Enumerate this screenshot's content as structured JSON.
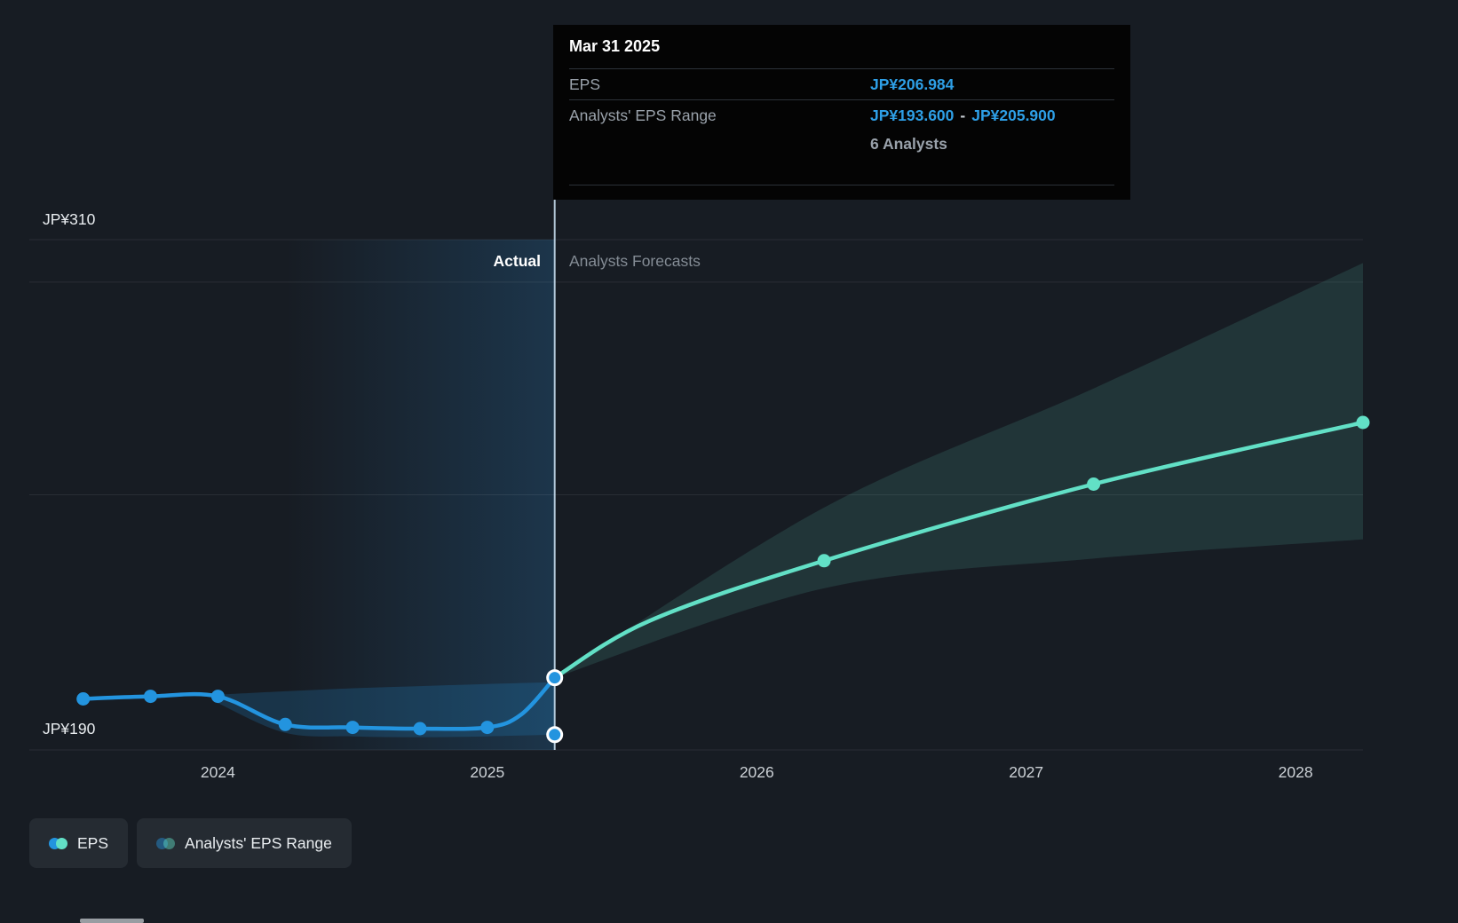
{
  "tooltip": {
    "title": "Mar 31 2025",
    "eps_label": "EPS",
    "eps_value": "JP¥206.984",
    "range_label": "Analysts' EPS Range",
    "range_low": "JP¥193.600",
    "range_separator": "-",
    "range_high": "JP¥205.900",
    "analysts_count": "6 Analysts"
  },
  "annotations": {
    "actual_label": "Actual",
    "forecast_label": "Analysts Forecasts"
  },
  "axis": {
    "y_labels": [
      "JP¥310",
      "JP¥190"
    ],
    "x_labels": [
      "2024",
      "2025",
      "2026",
      "2027",
      "2028"
    ]
  },
  "legend": {
    "eps_label": "EPS",
    "range_label": "Analysts' EPS Range"
  },
  "colors": {
    "eps_line": "#2394df",
    "forecast_line": "#62e0c6",
    "eps_muted": "rgba(35,148,223,0.45)",
    "forecast_muted": "rgba(98,224,198,0.45)",
    "tooltip_value": "#2e9fe6",
    "divider": "rgba(205,228,246,0.85)",
    "gridline": "rgba(255,255,255,0.08)"
  },
  "chart_data": {
    "type": "line",
    "x_unit": "year",
    "xlim": [
      2023.3,
      2028.25
    ],
    "ylim": [
      190,
      310
    ],
    "x_ticks": [
      2024,
      2025,
      2026,
      2027,
      2028
    ],
    "y_gridlines": [
      310,
      300,
      250,
      190
    ],
    "y_axis_labeled": [
      310,
      190
    ],
    "divider_x": 2025.25,
    "highlight_x": [
      2024.25,
      2025.25
    ],
    "series": [
      {
        "name": "EPS (actual)",
        "color": "#2394df",
        "x": [
          2023.5,
          2023.75,
          2024.0,
          2024.25,
          2024.5,
          2024.75,
          2025.0,
          2025.125,
          2025.25
        ],
        "values": [
          202.0,
          202.6,
          202.6,
          196.0,
          195.3,
          195.0,
          195.3,
          198.3,
          206.984
        ],
        "markers": [
          true,
          true,
          true,
          true,
          true,
          true,
          true,
          false,
          false
        ]
      },
      {
        "name": "EPS (analysts forecast)",
        "color": "#62e0c6",
        "x": [
          2025.25,
          2025.6,
          2026.25,
          2027.25,
          2028.25
        ],
        "values": [
          206.984,
          220.3,
          234.5,
          252.5,
          267.0
        ],
        "markers": [
          false,
          false,
          true,
          true,
          true
        ]
      }
    ],
    "bands": [
      {
        "name": "Analysts' EPS Range (past)",
        "color": "rgba(35,148,223,0.20)",
        "x": [
          2024.0,
          2024.25,
          2024.5,
          2024.75,
          2025.0,
          2025.25
        ],
        "upper": [
          203.0,
          203.8,
          204.5,
          205.0,
          205.5,
          205.9
        ],
        "lower": [
          201.0,
          194.0,
          193.2,
          193.0,
          193.2,
          193.6
        ]
      },
      {
        "name": "Analysts' EPS Range (forecast)",
        "color": "rgba(98,224,198,0.13)",
        "x": [
          2025.25,
          2026.25,
          2027.25,
          2028.25
        ],
        "upper": [
          206.984,
          247.0,
          275.0,
          304.5
        ],
        "lower": [
          206.984,
          228.0,
          235.0,
          239.5
        ]
      }
    ],
    "highlight_points": [
      {
        "x": 2025.25,
        "value": 206.984,
        "color": "#2394df"
      },
      {
        "x": 2025.25,
        "value": 193.6,
        "color": "#2394df"
      }
    ],
    "tooltip_at": {
      "x": 2025.25,
      "eps": 206.984,
      "range_low": 193.6,
      "range_high": 205.9,
      "analysts": 6
    }
  }
}
